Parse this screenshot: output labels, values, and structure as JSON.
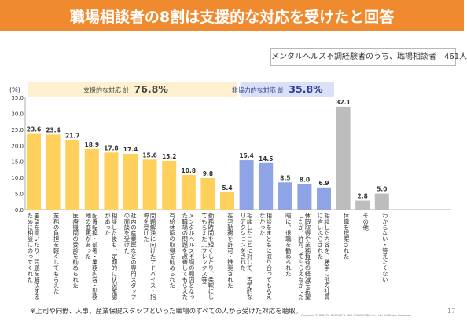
{
  "header": {
    "title": "職場相談者の8割は支援的な対応を受けたと回答"
  },
  "sample_note": "メンタルヘルス不調経験者のうち、職場相談者　461人",
  "footnote": "※上司や同僚、人事、産業保健スタッフといった職場のすべての人から受けた対応を聴取。",
  "copyright": "Copyright © PERSOL RESEARCH AND CONSULTING Co., Ltd. All Rights Reserved.",
  "page_number": "17",
  "colors": {
    "supportive": "#FFD15C",
    "nonsupportive": "#8FA4E6",
    "other": "#BDBDBD",
    "header": "#F08A2E"
  },
  "chart_data": {
    "type": "bar",
    "ylabel": "(%)",
    "ylim": [
      0,
      35
    ],
    "yticks": [
      "35.0",
      "30.0",
      "25.0",
      "20.0",
      "15.0",
      "10.0",
      "5.0",
      "0.0"
    ],
    "grid": false,
    "groups": [
      {
        "label": "支援的な対応 計",
        "total": "76.8%"
      },
      {
        "label": "非協力的な対応 計",
        "total": "35.8%"
      }
    ],
    "categories": [
      "要望を聞いたり、問題を解決するために相談にのってくれた",
      "業務の負担を軽くしてもらえた",
      "医療機関の受診を勧められた",
      "配置転換・部署・業務内容・勤務地の変更があった",
      "相談した後も、定期的に状況確認があった",
      "社内の産業医などの専門スタッフの面談を受けた",
      "問題解決に向けたアドバイス・指導を受けた",
      "有給休暇の取得を勧められた",
      "メンタルヘルス不調の原因となった職場の問題を改善してもらえた",
      "勤務時間を短くしたり、柔軟にしてもらえた（フレックス等）",
      "在宅勤務を許可・推奨された",
      "相談したことに対して、否定的なリアクションをされた",
      "相談をまともに取り合ってもらえなかった",
      "暗に、退職を勧められた",
      "休暇取得や業務負荷の軽減を希望したが、許可してもらえなかった",
      "相談した内容を、勝手に他の社員に言いふらされた",
      "休職を提案された",
      "その他",
      "わからない・答えたくない"
    ],
    "values": [
      23.6,
      23.4,
      21.7,
      18.9,
      17.8,
      17.4,
      15.6,
      15.2,
      10.8,
      9.8,
      5.4,
      15.4,
      14.5,
      8.5,
      8.0,
      6.9,
      32.1,
      2.8,
      5.0
    ],
    "value_labels": [
      "23.6",
      "23.4",
      "21.7",
      "18.9",
      "17.8",
      "17.4",
      "15.6",
      "15.2",
      "10.8",
      "9.8",
      "5.4",
      "15.4",
      "14.5",
      "8.5",
      "8.0",
      "6.9",
      "32.1",
      "2.8",
      "5.0"
    ],
    "bar_group": [
      "supportive",
      "supportive",
      "supportive",
      "supportive",
      "supportive",
      "supportive",
      "supportive",
      "supportive",
      "supportive",
      "supportive",
      "supportive",
      "nonsupportive",
      "nonsupportive",
      "nonsupportive",
      "nonsupportive",
      "nonsupportive",
      "other",
      "other",
      "other"
    ]
  }
}
